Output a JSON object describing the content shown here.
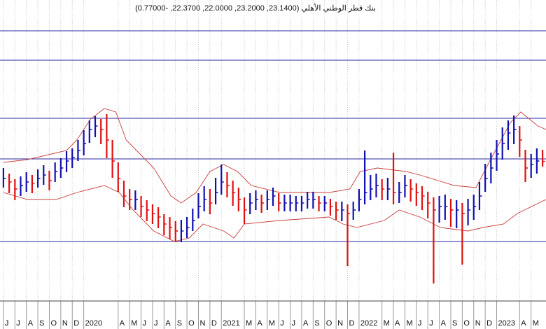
{
  "chart_data": {
    "type": "hlc",
    "title": "بنك قطر الوطني الأهلي (23.1400, 23.2000, 22.0000, 22.3700, -0.77000)",
    "x": [
      0,
      0.5,
      1,
      1.5,
      2,
      2.5,
      3,
      3.5,
      4,
      4.5,
      5,
      5.5,
      6,
      6.5,
      7,
      7.5,
      8,
      8.5,
      9,
      9.5,
      10,
      10.5,
      11,
      11.5,
      12,
      12.5,
      13,
      13.5,
      14,
      14.5,
      15,
      15.5,
      16,
      16.5,
      17,
      17.5,
      18,
      18.5,
      19,
      19.5,
      20,
      20.5,
      21,
      21.5,
      22,
      22.5,
      23,
      23.5,
      24,
      24.5,
      25,
      25.5,
      26,
      26.5,
      27,
      27.5,
      28,
      28.5,
      29,
      29.5,
      30,
      30.5,
      31,
      31.5,
      32,
      32.5,
      33,
      33.5,
      34,
      34.5,
      35,
      35.5,
      36,
      36.5,
      37,
      37.5,
      38,
      38.5,
      39,
      39.5,
      40,
      40.5,
      41,
      41.5,
      42,
      42.5,
      43,
      43.5,
      44,
      44.5,
      45,
      45.5,
      46,
      46.5,
      47
    ],
    "high": [
      21.9,
      21.5,
      21.1,
      21.3,
      21.6,
      21.4,
      21.8,
      22.1,
      21.7,
      22.3,
      22.6,
      23.1,
      23.3,
      23.9,
      24.6,
      25.3,
      25.6,
      25.4,
      25.75,
      23.9,
      22.3,
      21.0,
      20.4,
      20.3,
      19.9,
      19.6,
      19.3,
      19.1,
      18.6,
      18.4,
      18.1,
      18.2,
      18.4,
      19.0,
      20.1,
      20.6,
      20.4,
      21.2,
      22.15,
      21.6,
      21.0,
      20.5,
      19.8,
      20.1,
      20.3,
      20.0,
      20.3,
      20.5,
      20.1,
      20.0,
      20.0,
      19.9,
      19.9,
      20.2,
      20.2,
      19.9,
      19.9,
      19.7,
      19.5,
      19.5,
      19.3,
      19.5,
      20.4,
      23.15,
      21.4,
      21.5,
      21.1,
      21.2,
      23.0,
      20.9,
      21.4,
      21.1,
      20.8,
      20.6,
      20.2,
      19.8,
      19.9,
      20.0,
      19.7,
      19.6,
      19.4,
      19.7,
      20.0,
      20.9,
      22.2,
      23.0,
      23.9,
      24.8,
      25.3,
      25.65,
      24.9,
      23.2,
      22.9,
      23.3,
      23.2
    ],
    "low": [
      20.5,
      20.1,
      19.6,
      19.9,
      20.2,
      20.1,
      20.5,
      20.7,
      20.3,
      20.9,
      21.2,
      21.6,
      21.9,
      22.4,
      22.8,
      23.7,
      24.1,
      23.6,
      22.6,
      21.2,
      20.2,
      19.1,
      18.9,
      18.9,
      18.4,
      18.1,
      17.9,
      17.6,
      17.1,
      16.8,
      16.6,
      16.6,
      16.9,
      17.4,
      18.3,
      18.8,
      18.6,
      19.3,
      20.0,
      19.8,
      19.2,
      18.8,
      17.9,
      18.6,
      18.9,
      18.7,
      18.9,
      19.2,
      18.8,
      18.8,
      18.8,
      18.8,
      18.8,
      19.0,
      19.0,
      18.8,
      18.8,
      18.5,
      18.2,
      18.1,
      14.9,
      18.2,
      18.8,
      19.3,
      19.6,
      19.8,
      19.6,
      19.6,
      19.3,
      19.4,
      19.8,
      19.5,
      19.2,
      18.9,
      18.3,
      13.65,
      18.0,
      18.2,
      17.7,
      17.6,
      15.0,
      17.8,
      18.2,
      18.9,
      20.2,
      20.8,
      21.7,
      22.5,
      23.2,
      23.6,
      22.7,
      20.9,
      21.2,
      21.5,
      22.0
    ],
    "close": [
      21.15,
      20.9,
      20.4,
      20.65,
      20.9,
      20.8,
      21.15,
      21.4,
      21.0,
      21.65,
      21.9,
      22.4,
      22.65,
      23.15,
      23.65,
      24.65,
      24.9,
      24.65,
      23.9,
      22.4,
      21.15,
      19.9,
      19.65,
      19.65,
      19.15,
      18.9,
      18.65,
      18.4,
      17.9,
      17.65,
      17.4,
      17.4,
      17.65,
      18.15,
      19.15,
      19.65,
      19.4,
      20.15,
      20.9,
      20.65,
      20.15,
      19.65,
      18.9,
      19.4,
      19.65,
      19.4,
      19.65,
      19.9,
      19.4,
      19.4,
      19.4,
      19.4,
      19.4,
      19.65,
      19.65,
      19.4,
      19.4,
      19.15,
      18.9,
      18.9,
      18.65,
      18.9,
      19.65,
      20.15,
      20.4,
      20.65,
      20.4,
      20.4,
      20.15,
      20.15,
      20.65,
      20.4,
      20.15,
      19.9,
      19.4,
      18.9,
      19.15,
      19.15,
      18.9,
      18.9,
      18.65,
      18.9,
      19.15,
      19.9,
      21.15,
      21.9,
      22.9,
      23.65,
      24.4,
      24.65,
      23.9,
      21.9,
      22.15,
      22.4,
      22.37
    ],
    "up_color": "#1010b0",
    "down_color": "#e01010",
    "bands": [
      {
        "x": [
          0,
          2.1,
          5.5,
          6.4,
          7.6,
          8.8,
          9.8,
          10.7,
          13.1,
          14.6,
          15.5,
          16.8,
          18,
          19.2,
          20.4,
          21.6,
          24.1,
          28.4,
          30.2,
          31.1,
          32.6,
          35.1,
          36.3,
          39.3,
          41.2,
          42.4,
          44.2,
          45.1,
          46.6,
          47.3
        ],
        "values": [
          22.3,
          22.5,
          23.15,
          23.9,
          25.4,
          26.15,
          25.9,
          23.9,
          21.9,
          19.9,
          19.4,
          20.15,
          21.65,
          22.15,
          21.65,
          20.65,
          20.15,
          20.15,
          20.4,
          21.65,
          21.9,
          21.65,
          21.4,
          20.65,
          20.5,
          22.4,
          25.15,
          25.9,
          24.9,
          24.65
        ]
      },
      {
        "x": [
          0,
          2.1,
          4.6,
          6.4,
          8.8,
          10.1,
          11.3,
          13.1,
          14.9,
          16.2,
          17.4,
          19.2,
          20.1,
          21,
          24.1,
          28.4,
          29.6,
          30.8,
          33.2,
          34.5,
          36.3,
          38.1,
          40.5,
          41.8,
          43.6,
          44.8,
          47.3
        ],
        "values": [
          20.15,
          19.65,
          19.65,
          20.15,
          20.65,
          20.15,
          18.9,
          17.4,
          16.65,
          16.9,
          17.9,
          17.4,
          16.9,
          17.9,
          18.15,
          18.4,
          17.9,
          17.65,
          18.15,
          18.9,
          18.4,
          17.65,
          17.4,
          17.65,
          17.9,
          18.65,
          19.65
        ]
      }
    ],
    "band_color": "#c83c3c",
    "hlines": {
      "values": [
        31.7,
        29.6,
        25.45,
        22.55,
        16.65
      ],
      "color": "#2828a0"
    },
    "xlim": [
      -0.3,
      47.3
    ],
    "ylim": [
      12.4,
      33.9
    ],
    "xticks": [
      {
        "value": 0,
        "label": "J"
      },
      {
        "value": 1,
        "label": "J"
      },
      {
        "value": 2,
        "label": "A"
      },
      {
        "value": 3,
        "label": "S"
      },
      {
        "value": 4,
        "label": "O"
      },
      {
        "value": 5,
        "label": "N"
      },
      {
        "value": 6,
        "label": "D"
      },
      {
        "value": 7,
        "label": "2020"
      },
      {
        "value": 10,
        "label": "A"
      },
      {
        "value": 11,
        "label": "M"
      },
      {
        "value": 12,
        "label": "J"
      },
      {
        "value": 13,
        "label": "J"
      },
      {
        "value": 14,
        "label": "A"
      },
      {
        "value": 15,
        "label": "S"
      },
      {
        "value": 16,
        "label": "O"
      },
      {
        "value": 17,
        "label": "N"
      },
      {
        "value": 18,
        "label": "D"
      },
      {
        "value": 19,
        "label": "2021"
      },
      {
        "value": 21,
        "label": "M"
      },
      {
        "value": 22,
        "label": "A"
      },
      {
        "value": 23,
        "label": "M"
      },
      {
        "value": 24,
        "label": "J"
      },
      {
        "value": 25,
        "label": "J"
      },
      {
        "value": 26,
        "label": "A"
      },
      {
        "value": 27,
        "label": "S"
      },
      {
        "value": 28,
        "label": "O"
      },
      {
        "value": 29,
        "label": "N"
      },
      {
        "value": 30,
        "label": "D"
      },
      {
        "value": 31,
        "label": "2022"
      },
      {
        "value": 33,
        "label": "M"
      },
      {
        "value": 34,
        "label": "A"
      },
      {
        "value": 35,
        "label": "M"
      },
      {
        "value": 36,
        "label": "J"
      },
      {
        "value": 37,
        "label": "J"
      },
      {
        "value": 38,
        "label": "A"
      },
      {
        "value": 39,
        "label": "S"
      },
      {
        "value": 40,
        "label": "O"
      },
      {
        "value": 41,
        "label": "N"
      },
      {
        "value": 42,
        "label": "D"
      },
      {
        "value": 43,
        "label": "2023"
      },
      {
        "value": 45,
        "label": "A"
      },
      {
        "value": 46,
        "label": "M"
      }
    ],
    "grid": true
  }
}
